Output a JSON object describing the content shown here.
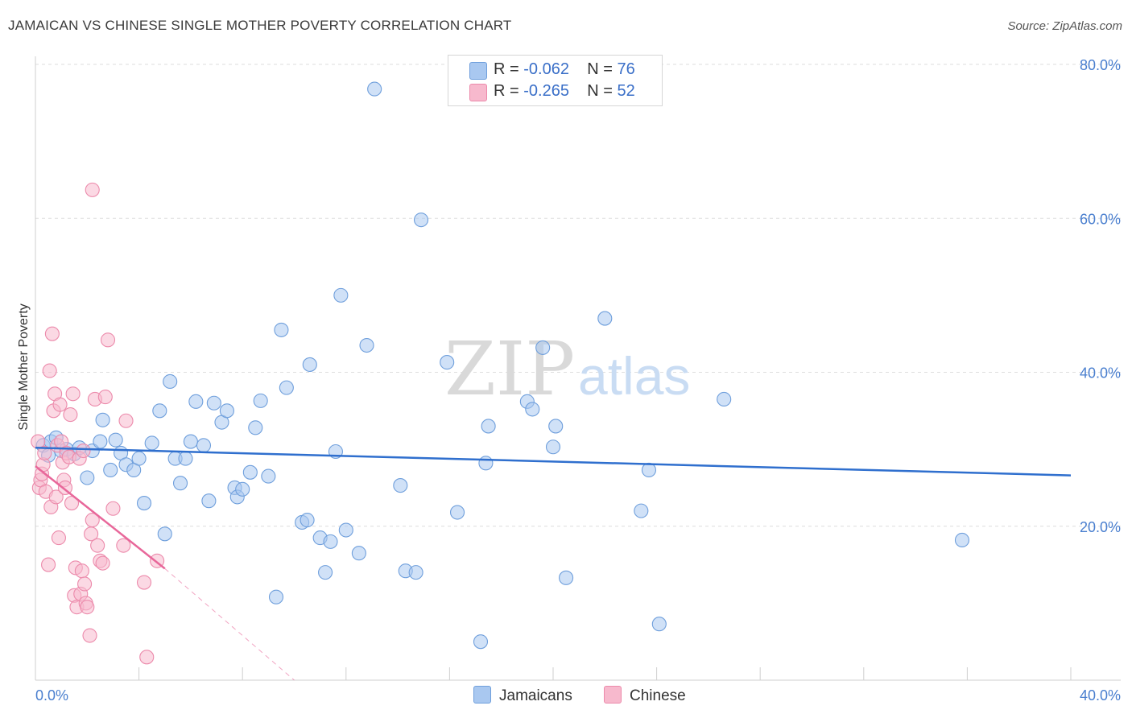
{
  "title": "JAMAICAN VS CHINESE SINGLE MOTHER POVERTY CORRELATION CHART",
  "source": "Source: ZipAtlas.com",
  "watermark_zip": "ZIP",
  "watermark_atlas": "atlas",
  "colors": {
    "blue_fill": "#a9c8f0",
    "blue_stroke": "#6f9fdc",
    "blue_line": "#2f6fce",
    "pink_fill": "#f7b9cd",
    "pink_stroke": "#ec8aab",
    "pink_line": "#e8679a",
    "tick_color": "#4a7fcf"
  },
  "legend": {
    "rows": [
      {
        "r_label": "R = ",
        "r_value": "-0.062",
        "n_label": "N = ",
        "n_value": "76"
      },
      {
        "r_label": "R = ",
        "r_value": "-0.265",
        "n_label": "N = ",
        "n_value": "52"
      }
    ],
    "series": [
      "Jamaicans",
      "Chinese"
    ]
  },
  "chart_data": {
    "type": "scatter",
    "title": "JAMAICAN VS CHINESE SINGLE MOTHER POVERTY CORRELATION CHART",
    "xlabel": "",
    "ylabel": "Single Mother Poverty",
    "xlim": [
      0,
      40
    ],
    "ylim": [
      0,
      80
    ],
    "x_tick_labels": [
      "0.0%",
      "40.0%"
    ],
    "y_tick_values": [
      20,
      40,
      60,
      80
    ],
    "y_tick_labels": [
      "20.0%",
      "40.0%",
      "60.0%",
      "80.0%"
    ],
    "series": [
      {
        "name": "Jamaicans",
        "R": -0.062,
        "N": 76,
        "trend": {
          "x": [
            0,
            40
          ],
          "y": [
            30.2,
            26.6
          ]
        },
        "points": [
          [
            0.3,
            30.5
          ],
          [
            0.5,
            29.2
          ],
          [
            0.6,
            31.0
          ],
          [
            0.8,
            31.5
          ],
          [
            1.0,
            29.8
          ],
          [
            1.2,
            30.0
          ],
          [
            1.5,
            29.4
          ],
          [
            1.7,
            30.2
          ],
          [
            2.0,
            26.3
          ],
          [
            2.2,
            29.8
          ],
          [
            2.5,
            31.0
          ],
          [
            2.6,
            33.8
          ],
          [
            2.9,
            27.3
          ],
          [
            3.1,
            31.2
          ],
          [
            3.3,
            29.5
          ],
          [
            3.5,
            28.0
          ],
          [
            3.8,
            27.3
          ],
          [
            4.0,
            28.8
          ],
          [
            4.2,
            23.0
          ],
          [
            4.5,
            30.8
          ],
          [
            4.8,
            35.0
          ],
          [
            5.0,
            19.0
          ],
          [
            5.2,
            38.8
          ],
          [
            5.4,
            28.8
          ],
          [
            5.6,
            25.6
          ],
          [
            5.8,
            28.8
          ],
          [
            6.0,
            31.0
          ],
          [
            6.2,
            36.2
          ],
          [
            6.5,
            30.5
          ],
          [
            6.7,
            23.3
          ],
          [
            6.9,
            36.0
          ],
          [
            7.2,
            33.5
          ],
          [
            7.4,
            35.0
          ],
          [
            7.7,
            25.0
          ],
          [
            7.8,
            23.8
          ],
          [
            8.0,
            24.8
          ],
          [
            8.3,
            27.0
          ],
          [
            8.5,
            32.8
          ],
          [
            8.7,
            36.3
          ],
          [
            9.0,
            26.5
          ],
          [
            9.3,
            10.8
          ],
          [
            9.5,
            45.5
          ],
          [
            9.7,
            38.0
          ],
          [
            10.3,
            20.5
          ],
          [
            10.5,
            20.8
          ],
          [
            10.6,
            41.0
          ],
          [
            11.0,
            18.5
          ],
          [
            11.2,
            14.0
          ],
          [
            11.4,
            18.0
          ],
          [
            11.6,
            29.7
          ],
          [
            11.8,
            50.0
          ],
          [
            12.0,
            19.5
          ],
          [
            12.5,
            16.5
          ],
          [
            12.8,
            43.5
          ],
          [
            13.1,
            76.8
          ],
          [
            14.1,
            25.3
          ],
          [
            14.3,
            14.2
          ],
          [
            14.7,
            14.0
          ],
          [
            14.9,
            59.8
          ],
          [
            15.9,
            41.3
          ],
          [
            16.3,
            21.8
          ],
          [
            17.2,
            5.0
          ],
          [
            17.4,
            28.2
          ],
          [
            17.5,
            33.0
          ],
          [
            19.0,
            36.2
          ],
          [
            19.2,
            35.2
          ],
          [
            19.6,
            43.2
          ],
          [
            20.0,
            30.3
          ],
          [
            20.1,
            33.0
          ],
          [
            20.5,
            13.3
          ],
          [
            22.0,
            47.0
          ],
          [
            23.4,
            22.0
          ],
          [
            23.7,
            27.3
          ],
          [
            24.1,
            7.3
          ],
          [
            26.6,
            36.5
          ],
          [
            35.8,
            18.2
          ]
        ]
      },
      {
        "name": "Chinese",
        "R": -0.265,
        "N": 52,
        "trend": {
          "x": [
            0,
            5.0
          ],
          "y": [
            27.8,
            14.5
          ]
        },
        "trend_dashed": {
          "x": [
            5.0,
            10.0
          ],
          "y": [
            14.5,
            0
          ]
        },
        "points": [
          [
            0.1,
            31.0
          ],
          [
            0.15,
            25.0
          ],
          [
            0.2,
            26.0
          ],
          [
            0.25,
            26.8
          ],
          [
            0.3,
            28.0
          ],
          [
            0.35,
            29.5
          ],
          [
            0.4,
            24.5
          ],
          [
            0.5,
            15.0
          ],
          [
            0.55,
            40.2
          ],
          [
            0.6,
            22.5
          ],
          [
            0.65,
            45.0
          ],
          [
            0.7,
            35.0
          ],
          [
            0.75,
            37.2
          ],
          [
            0.8,
            23.8
          ],
          [
            0.85,
            30.5
          ],
          [
            0.9,
            18.5
          ],
          [
            0.95,
            35.8
          ],
          [
            1.0,
            31.0
          ],
          [
            1.05,
            28.3
          ],
          [
            1.1,
            26.0
          ],
          [
            1.15,
            25.0
          ],
          [
            1.2,
            29.5
          ],
          [
            1.3,
            29.0
          ],
          [
            1.35,
            34.5
          ],
          [
            1.4,
            23.0
          ],
          [
            1.45,
            37.2
          ],
          [
            1.5,
            11.0
          ],
          [
            1.55,
            14.6
          ],
          [
            1.6,
            9.5
          ],
          [
            1.7,
            28.8
          ],
          [
            1.75,
            11.2
          ],
          [
            1.8,
            14.2
          ],
          [
            1.85,
            29.8
          ],
          [
            1.9,
            12.5
          ],
          [
            1.95,
            10.0
          ],
          [
            2.0,
            9.5
          ],
          [
            2.1,
            5.8
          ],
          [
            2.15,
            19.0
          ],
          [
            2.2,
            20.8
          ],
          [
            2.3,
            36.5
          ],
          [
            2.4,
            17.5
          ],
          [
            2.5,
            15.5
          ],
          [
            2.6,
            15.2
          ],
          [
            2.7,
            36.8
          ],
          [
            2.8,
            44.2
          ],
          [
            3.0,
            22.3
          ],
          [
            2.2,
            63.7
          ],
          [
            3.4,
            17.5
          ],
          [
            3.5,
            33.7
          ],
          [
            4.2,
            12.7
          ],
          [
            4.3,
            3.0
          ],
          [
            4.7,
            15.5
          ]
        ]
      }
    ]
  }
}
